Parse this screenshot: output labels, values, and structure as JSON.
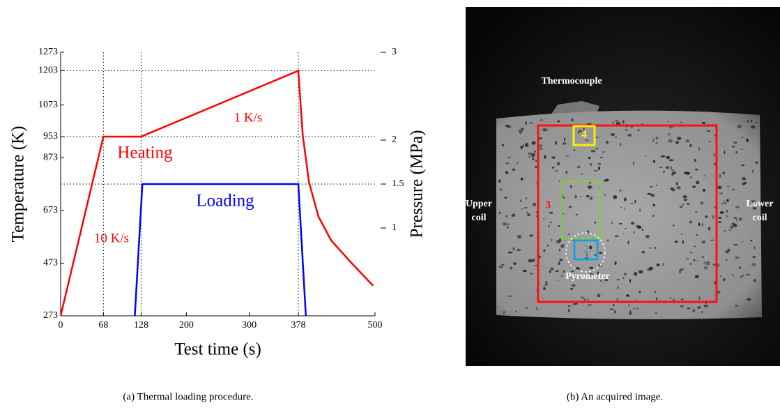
{
  "chart_data": {
    "type": "line",
    "x_label": "Test time (s)",
    "y_label": "Temperature (K)",
    "y2_label": "Pressure (MPa)",
    "xlim": [
      0,
      500
    ],
    "xticks": [
      0,
      68,
      128,
      200,
      300,
      378,
      500
    ],
    "ylim": [
      273,
      1273
    ],
    "yticks": [
      273,
      473,
      673,
      873,
      953,
      1073,
      1203,
      1273
    ],
    "y2lim": [
      0,
      3
    ],
    "y2ticks": [
      1,
      1.5,
      2,
      3
    ],
    "series": [
      {
        "name": "Heating",
        "color": "#ff0000",
        "x": [
          0,
          68,
          128,
          378,
          385,
          395,
          410,
          430,
          460,
          497
        ],
        "values": [
          273,
          953,
          953,
          1203,
          960,
          780,
          650,
          560,
          480,
          387
        ]
      },
      {
        "name": "Loading",
        "color": "#0000ff",
        "axis": "y2",
        "x": [
          118,
          130,
          378,
          390
        ],
        "values": [
          0,
          1.5,
          1.5,
          0
        ]
      }
    ],
    "annotations": [
      "1 K/s",
      "10 K/s"
    ],
    "caption": "(a) Thermal loading procedure."
  },
  "image": {
    "caption": "(b) An acquired image.",
    "labels": {
      "thermocouple": "Thermocouple",
      "upper_coil": [
        "Upper",
        "coil"
      ],
      "lower_coil": [
        "Lower",
        "coil"
      ],
      "pyrometer": "Pyrometer"
    },
    "regions": [
      "1",
      "2",
      "3",
      "4"
    ]
  }
}
